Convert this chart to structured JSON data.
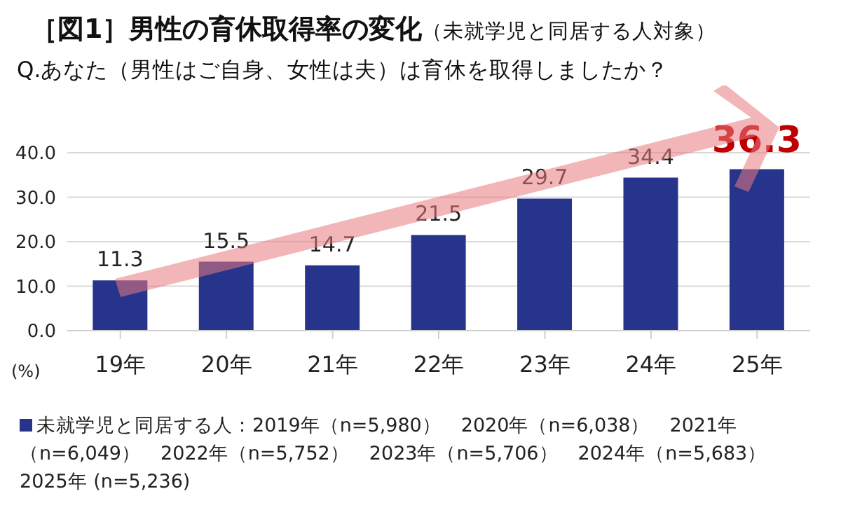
{
  "chart_data": {
    "type": "bar",
    "title": "［図1］男性の育休取得率の変化",
    "subtitle": "（未就学児と同居する人対象）",
    "annotations": [
      "Q.あなた（男性はご自身、女性は夫）は育休を取得しましたか？"
    ],
    "ylabel": "(%)",
    "categories": [
      "19年",
      "20年",
      "21年",
      "22年",
      "23年",
      "24年",
      "25年"
    ],
    "series": [
      {
        "name": "未就学児と同居する人：2019年（n=5,980）　2020年（n=6,038）　2021年（n=6,049）　2022年（n=5,752）　2023年（n=5,706）　2024年（n=5,683）　2025年 (n=5,236)",
        "color": "#27348b",
        "values": [
          11.3,
          15.5,
          14.7,
          21.5,
          29.7,
          34.4,
          36.3
        ]
      }
    ],
    "ylim": [
      0,
      40
    ],
    "yticks": [
      {
        "value": 0,
        "label": "0.0"
      },
      {
        "value": 10,
        "label": "10.0"
      },
      {
        "value": 20,
        "label": "20.0"
      },
      {
        "value": 30,
        "label": "30.0"
      },
      {
        "value": 40,
        "label": "40.0"
      }
    ],
    "grid": "y",
    "legend": "bottom",
    "data_labels": true
  }
}
